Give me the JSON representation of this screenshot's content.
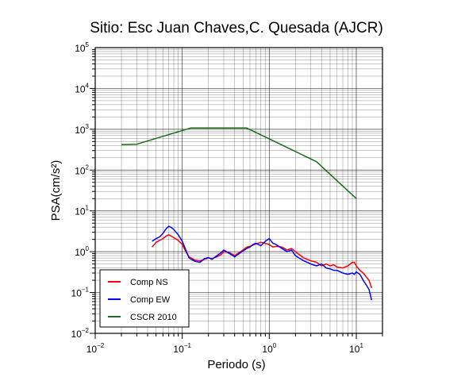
{
  "chart_data": {
    "type": "line",
    "title": "Sitio: Esc Juan Chaves,C. Quesada (AJCR)",
    "xlabel": "Periodo (s)",
    "ylabel": "PSA(cm/s²)",
    "x_scale": "log",
    "y_scale": "log",
    "xlim": [
      0.01,
      20
    ],
    "ylim": [
      0.01,
      100000
    ],
    "x_ticks": [
      {
        "base": "10",
        "exp": "−2",
        "value": 0.01
      },
      {
        "base": "10",
        "exp": "−1",
        "value": 0.1
      },
      {
        "base": "10",
        "exp": "0",
        "value": 1
      },
      {
        "base": "10",
        "exp": "1",
        "value": 10
      }
    ],
    "y_ticks": [
      {
        "base": "10",
        "exp": "−2",
        "value": 0.01
      },
      {
        "base": "10",
        "exp": "−1",
        "value": 0.1
      },
      {
        "base": "10",
        "exp": "0",
        "value": 1
      },
      {
        "base": "10",
        "exp": "1",
        "value": 10
      },
      {
        "base": "10",
        "exp": "2",
        "value": 100
      },
      {
        "base": "10",
        "exp": "3",
        "value": 1000
      },
      {
        "base": "10",
        "exp": "4",
        "value": 10000
      },
      {
        "base": "10",
        "exp": "5",
        "value": 100000
      }
    ],
    "grid": true,
    "legend_position": "bottom-left",
    "series": [
      {
        "name": "Comp NS",
        "color": "#ff0000",
        "x": [
          0.045,
          0.05,
          0.055,
          0.06,
          0.065,
          0.07,
          0.075,
          0.08,
          0.09,
          0.1,
          0.11,
          0.12,
          0.14,
          0.16,
          0.18,
          0.2,
          0.22,
          0.25,
          0.28,
          0.3,
          0.35,
          0.4,
          0.45,
          0.5,
          0.55,
          0.6,
          0.65,
          0.7,
          0.8,
          0.9,
          1.0,
          1.1,
          1.2,
          1.4,
          1.6,
          1.8,
          2.0,
          2.2,
          2.5,
          3.0,
          3.5,
          4.0,
          4.5,
          5.0,
          5.5,
          6.0,
          7.0,
          8.0,
          9.0,
          9.5,
          10.0,
          11.0,
          12.0,
          14.0,
          15.0
        ],
        "values": [
          1.3,
          1.7,
          1.9,
          2.1,
          2.4,
          2.6,
          2.4,
          2.2,
          1.9,
          1.5,
          1.0,
          0.75,
          0.62,
          0.6,
          0.65,
          0.7,
          0.68,
          0.75,
          0.85,
          1.0,
          0.95,
          0.8,
          0.95,
          1.1,
          1.3,
          1.35,
          1.45,
          1.55,
          1.7,
          1.6,
          1.5,
          1.3,
          1.35,
          1.3,
          1.1,
          1.2,
          1.0,
          0.85,
          0.7,
          0.6,
          0.55,
          0.45,
          0.5,
          0.45,
          0.48,
          0.42,
          0.4,
          0.45,
          0.55,
          0.55,
          0.45,
          0.35,
          0.3,
          0.2,
          0.13
        ]
      },
      {
        "name": "Comp EW",
        "color": "#0000ff",
        "x": [
          0.045,
          0.05,
          0.055,
          0.06,
          0.065,
          0.07,
          0.075,
          0.08,
          0.09,
          0.1,
          0.11,
          0.12,
          0.14,
          0.16,
          0.18,
          0.2,
          0.22,
          0.25,
          0.28,
          0.3,
          0.35,
          0.4,
          0.45,
          0.5,
          0.55,
          0.6,
          0.65,
          0.7,
          0.8,
          0.9,
          1.0,
          1.1,
          1.2,
          1.4,
          1.6,
          1.8,
          2.0,
          2.2,
          2.5,
          3.0,
          3.5,
          4.0,
          4.5,
          5.0,
          5.5,
          6.0,
          7.0,
          8.0,
          9.0,
          9.5,
          10.0,
          11.0,
          12.0,
          14.0,
          15.0
        ],
        "values": [
          1.8,
          2.1,
          2.3,
          2.8,
          3.6,
          4.2,
          3.9,
          3.5,
          2.6,
          1.8,
          1.1,
          0.7,
          0.58,
          0.55,
          0.68,
          0.72,
          0.65,
          0.8,
          0.95,
          1.1,
          0.9,
          0.75,
          0.9,
          1.05,
          1.2,
          1.3,
          1.5,
          1.6,
          1.4,
          1.8,
          2.1,
          1.6,
          1.5,
          1.2,
          1.0,
          1.1,
          0.8,
          0.7,
          0.6,
          0.5,
          0.45,
          0.5,
          0.4,
          0.38,
          0.35,
          0.35,
          0.3,
          0.28,
          0.3,
          0.28,
          0.32,
          0.28,
          0.2,
          0.12,
          0.065
        ]
      },
      {
        "name": "CSCR 2010",
        "color": "#1a6b1a",
        "x": [
          0.02,
          0.03,
          0.125,
          0.55,
          3.5,
          10.0
        ],
        "values": [
          420,
          430,
          1070,
          1070,
          160,
          20
        ]
      }
    ]
  }
}
